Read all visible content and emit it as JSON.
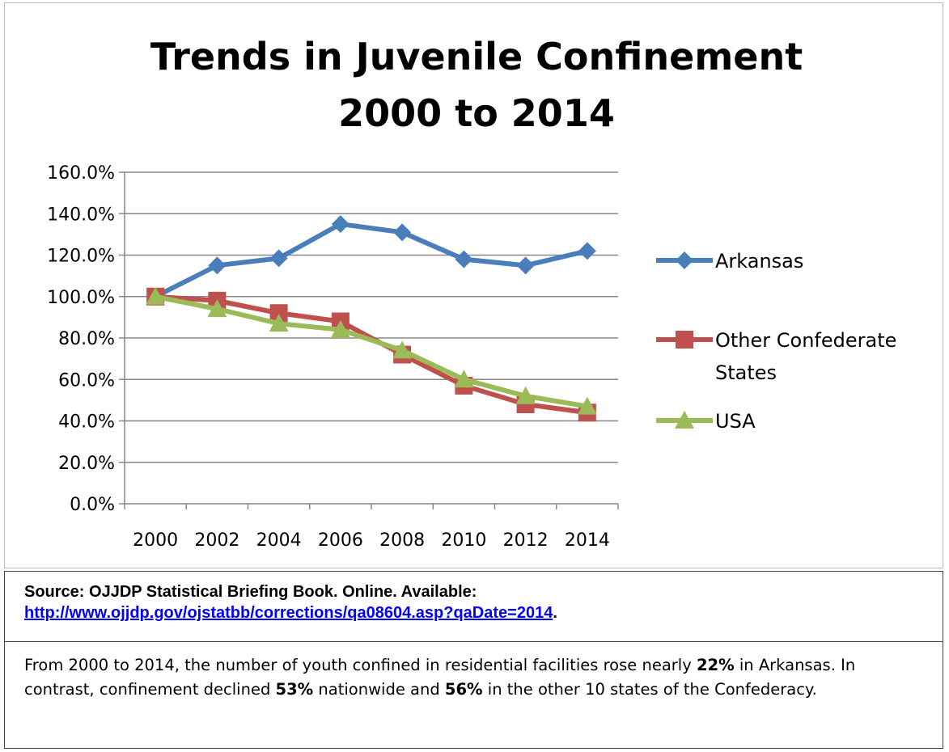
{
  "chart_data": {
    "type": "line",
    "title": [
      "Trends in Juvenile Confinement",
      "2000 to 2014"
    ],
    "categories": [
      "2000",
      "2002",
      "2004",
      "2006",
      "2008",
      "2010",
      "2012",
      "2014"
    ],
    "ylim": [
      0,
      160
    ],
    "yticks": [
      "0.0%",
      "20.0%",
      "40.0%",
      "60.0%",
      "80.0%",
      "100.0%",
      "120.0%",
      "140.0%",
      "160.0%"
    ],
    "grid": true,
    "legend": "right",
    "series": [
      {
        "name": "Arkansas",
        "color": "#4a7ebb",
        "marker": "diamond",
        "values": [
          100,
          115,
          118.5,
          135,
          131,
          118,
          115,
          122
        ]
      },
      {
        "name": "Other Confederate States",
        "name_lines": [
          "Other Confederate",
          "States"
        ],
        "color": "#c0504d",
        "marker": "square",
        "values": [
          100,
          98,
          92,
          88,
          72,
          57,
          48,
          44
        ]
      },
      {
        "name": "USA",
        "color": "#9bbb59",
        "marker": "triangle",
        "values": [
          100,
          94,
          87,
          84,
          74,
          60,
          52,
          47
        ]
      }
    ]
  },
  "source": {
    "label": "Source: OJJDP Statistical Briefing Book. Online. Available:",
    "link": "http://www.ojjdp.gov/ojstatbb/corrections/qa08604.asp?qaDate=2014",
    "period": "."
  },
  "note": {
    "p1": "From 2000 to 2014, the number of youth confined in residential facilities rose nearly ",
    "b1": "22%",
    "p2": " in Arkansas. In contrast, confinement declined ",
    "b2": "53%",
    "p3": " nationwide and ",
    "b3": "56%",
    "p4": " in the other 10 states of the Confederacy."
  }
}
